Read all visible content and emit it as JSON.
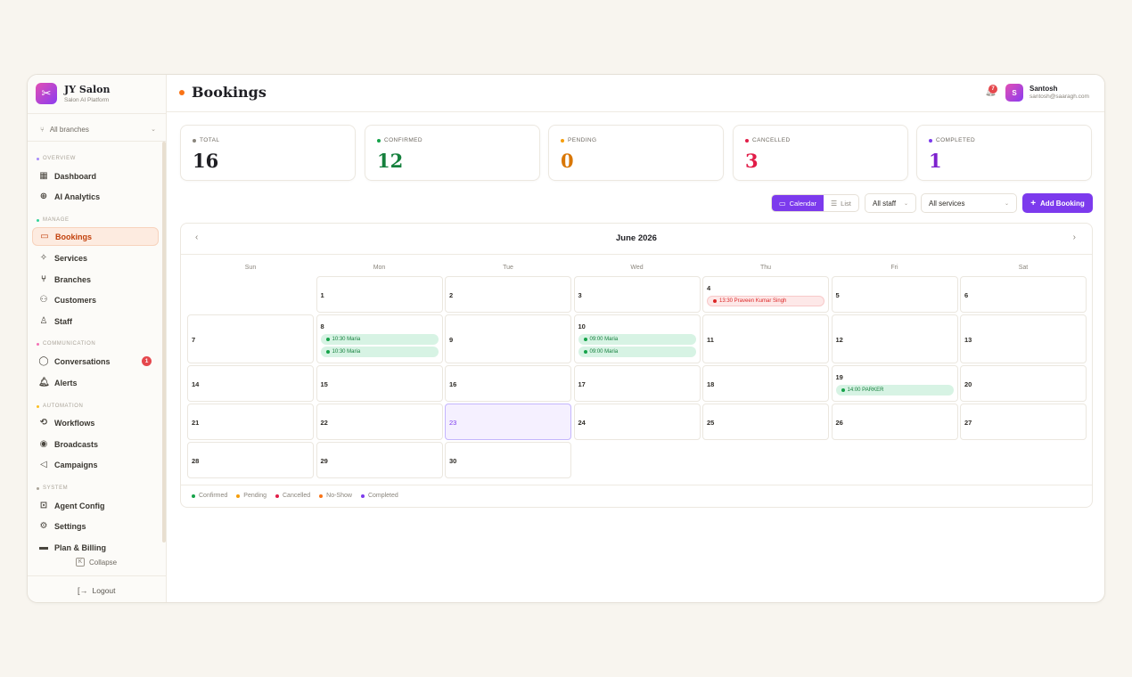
{
  "brand": {
    "title": "JY Salon",
    "subtitle": "Salon AI Platform",
    "icon": "scissors-icon"
  },
  "branch_select": {
    "value": "All branches"
  },
  "sidebar": {
    "sections": [
      {
        "label": "OVERVIEW",
        "color": "#a78bfa"
      },
      {
        "label": "MANAGE",
        "color": "#34d399"
      },
      {
        "label": "COMMUNICATION",
        "color": "#f472b6"
      },
      {
        "label": "AUTOMATION",
        "color": "#fbbf24"
      },
      {
        "label": "SYSTEM",
        "color": "#a9a398"
      }
    ],
    "items": [
      {
        "label": "Dashboard",
        "icon": "grid-icon"
      },
      {
        "label": "AI Analytics",
        "icon": "brain-icon"
      },
      {
        "label": "Bookings",
        "icon": "calendar-icon",
        "active": true
      },
      {
        "label": "Services",
        "icon": "sparkle-icon"
      },
      {
        "label": "Branches",
        "icon": "branch-icon"
      },
      {
        "label": "Customers",
        "icon": "users-icon"
      },
      {
        "label": "Staff",
        "icon": "staff-icon"
      },
      {
        "label": "Conversations",
        "icon": "chat-icon",
        "badge": "1"
      },
      {
        "label": "Alerts",
        "icon": "bell-icon"
      },
      {
        "label": "Workflows",
        "icon": "workflow-icon"
      },
      {
        "label": "Broadcasts",
        "icon": "broadcast-icon"
      },
      {
        "label": "Campaigns",
        "icon": "megaphone-icon"
      },
      {
        "label": "Agent Config",
        "icon": "robot-icon"
      },
      {
        "label": "Settings",
        "icon": "gear-icon"
      },
      {
        "label": "Plan & Billing",
        "icon": "card-icon"
      }
    ],
    "collapse_label": "Collapse",
    "logout_label": "Logout"
  },
  "header": {
    "title": "Bookings",
    "notification_count": "7",
    "user": {
      "initial": "S",
      "name": "Santosh",
      "email": "santosh@saaragh.com"
    }
  },
  "stats": [
    {
      "label": "TOTAL",
      "value": "16",
      "color": "#1f1f24",
      "dot": "#8a857c"
    },
    {
      "label": "CONFIRMED",
      "value": "12",
      "color": "#15803d",
      "dot": "#16a34a"
    },
    {
      "label": "PENDING",
      "value": "0",
      "color": "#d97706",
      "dot": "#f59e0b"
    },
    {
      "label": "CANCELLED",
      "value": "3",
      "color": "#e11d48",
      "dot": "#e11d48"
    },
    {
      "label": "COMPLETED",
      "value": "1",
      "color": "#7e22ce",
      "dot": "#7c3aed"
    }
  ],
  "toolbar": {
    "calendar_label": "Calendar",
    "list_label": "List",
    "staff_select": "All staff",
    "service_select": "All services",
    "add_label": "Add Booking"
  },
  "calendar": {
    "month": "June 2026",
    "weekdays": [
      "Sun",
      "Mon",
      "Tue",
      "Wed",
      "Thu",
      "Fri",
      "Sat"
    ],
    "days": [
      "1",
      "2",
      "3",
      "4",
      "5",
      "6",
      "7",
      "8",
      "9",
      "10",
      "11",
      "12",
      "13",
      "14",
      "15",
      "16",
      "17",
      "18",
      "19",
      "20",
      "21",
      "22",
      "23",
      "24",
      "25",
      "26",
      "27",
      "28",
      "29",
      "30"
    ],
    "today": "23",
    "events": {
      "4": [
        {
          "text": "13:30 Praveen Kumar Singh",
          "status": "cancelled"
        }
      ],
      "8": [
        {
          "text": "10:30 Maria",
          "status": "confirmed"
        },
        {
          "text": "10:30 Maria",
          "status": "confirmed"
        }
      ],
      "10": [
        {
          "text": "09:00 Maria",
          "status": "confirmed"
        },
        {
          "text": "09:00 Maria",
          "status": "confirmed"
        }
      ],
      "19": [
        {
          "text": "14:00 PARKER",
          "status": "confirmed"
        }
      ]
    }
  },
  "legend": [
    {
      "label": "Confirmed",
      "color": "#16a34a"
    },
    {
      "label": "Pending",
      "color": "#f59e0b"
    },
    {
      "label": "Cancelled",
      "color": "#e11d48"
    },
    {
      "label": "No-Show",
      "color": "#f97316"
    },
    {
      "label": "Completed",
      "color": "#7c3aed"
    }
  ]
}
